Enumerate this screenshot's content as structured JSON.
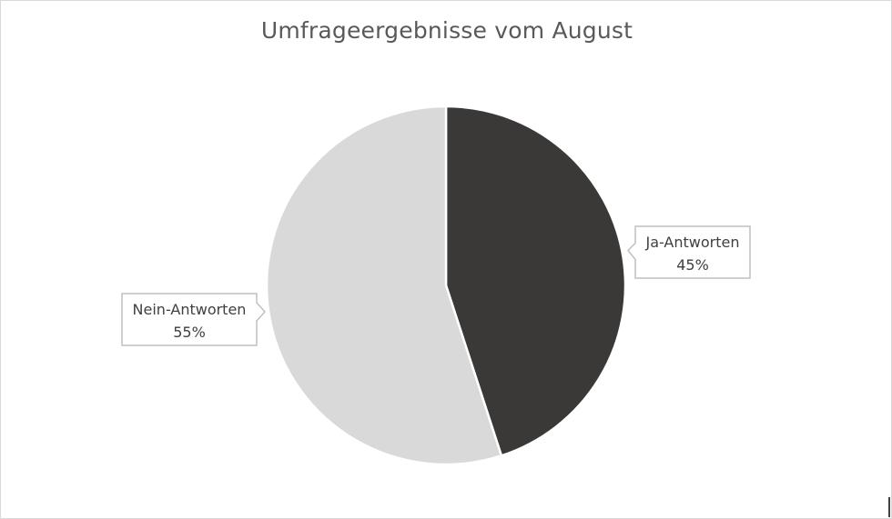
{
  "chart_data": {
    "type": "pie",
    "title": "Umfrageergebnisse vom August",
    "slices": [
      {
        "label": "Ja-Antworten",
        "value": 45,
        "display": "45%",
        "color": "#3a3938"
      },
      {
        "label": "Nein-Antworten",
        "value": 55,
        "display": "55%",
        "color": "#d9d9d9"
      }
    ],
    "start_angle": "12 o'clock",
    "direction": "clockwise",
    "data_labels": "callouts with category name and percentage",
    "legend": "none"
  }
}
